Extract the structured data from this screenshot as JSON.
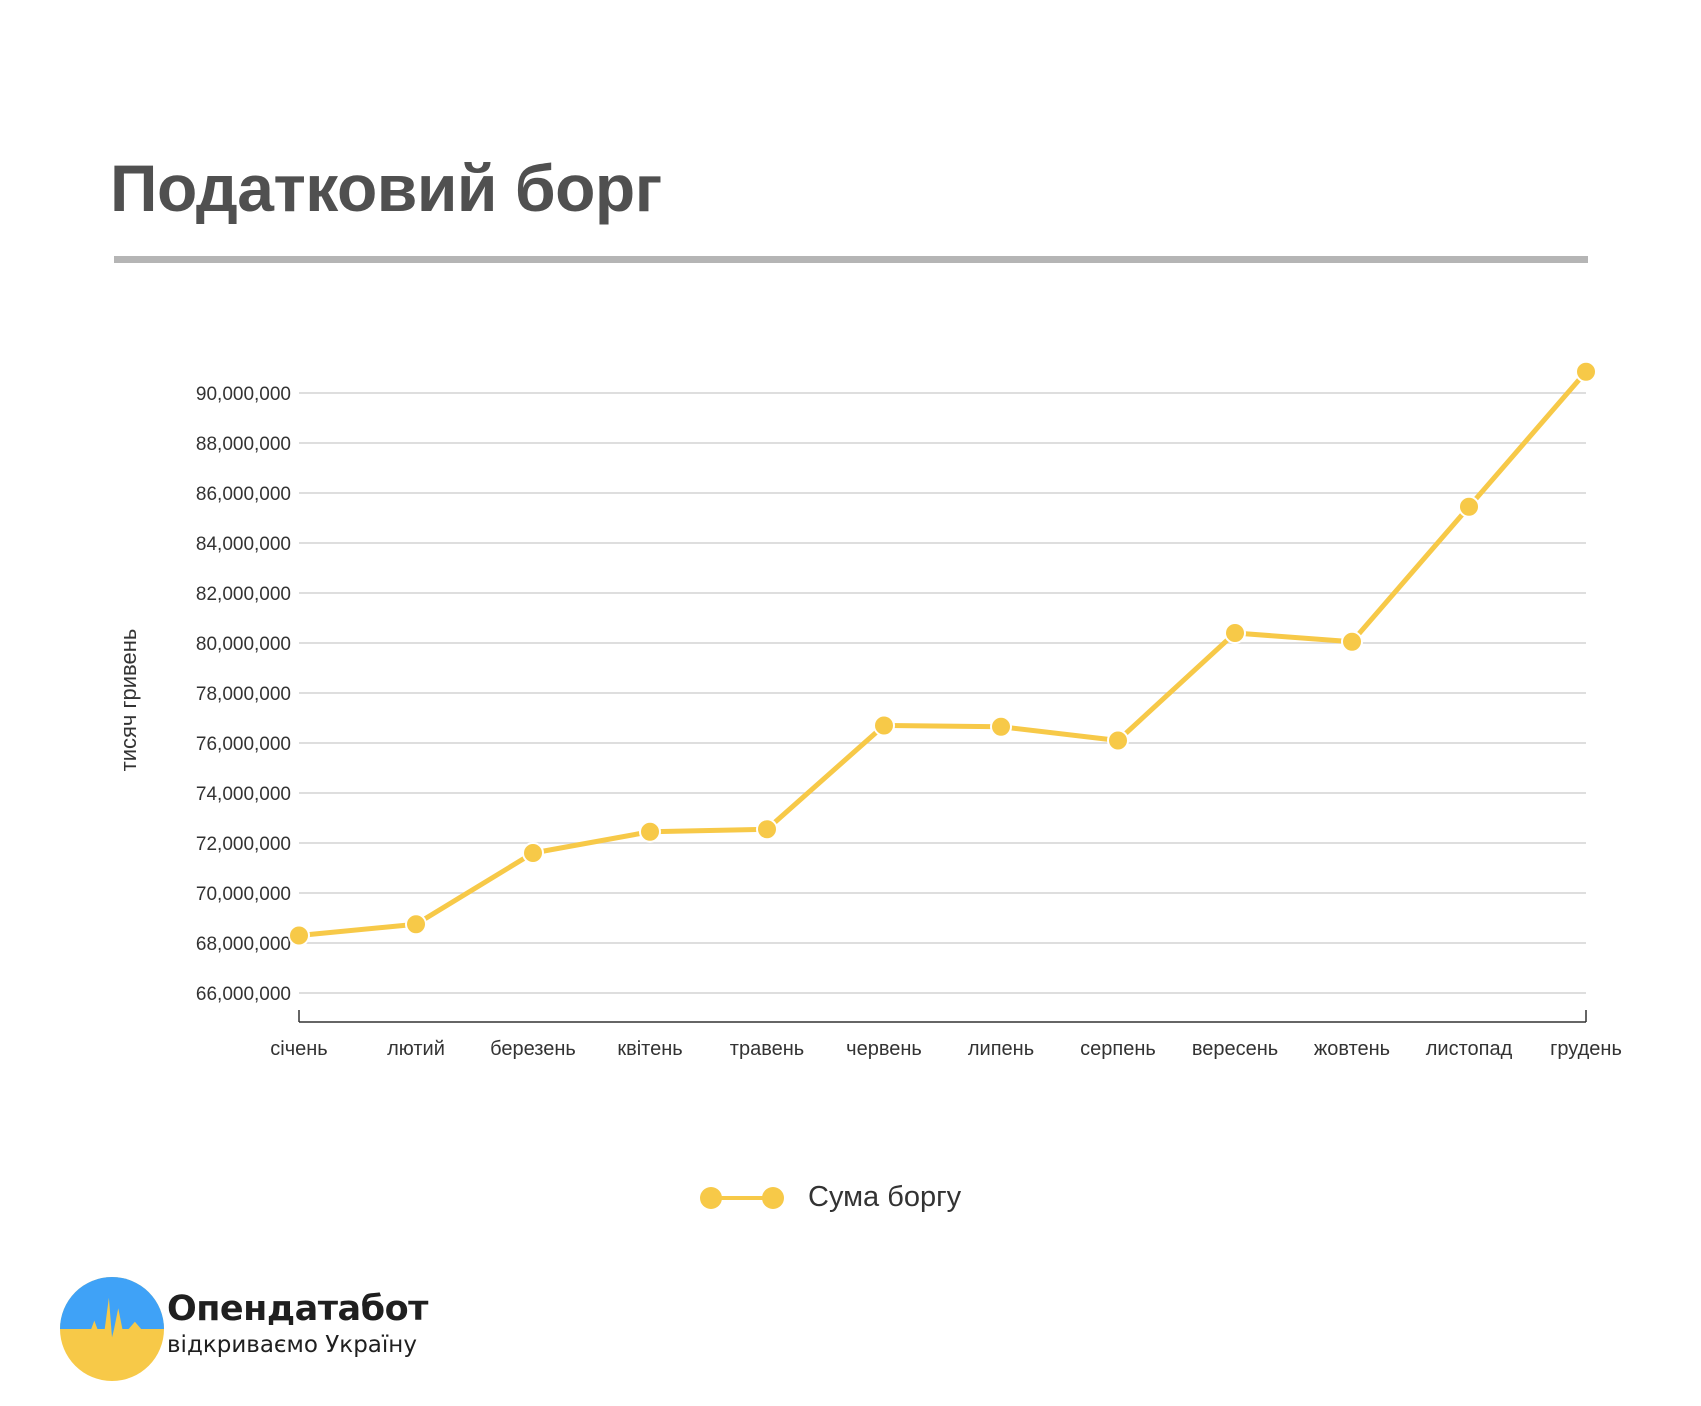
{
  "header": {
    "title": "Податковий борг"
  },
  "chart_data": {
    "type": "line",
    "categories": [
      "січень",
      "лютий",
      "березень",
      "квітень",
      "травень",
      "червень",
      "липень",
      "серпень",
      "вересень",
      "жовтень",
      "листопад",
      "грудень"
    ],
    "series": [
      {
        "name": "Сума боргу",
        "color": "#f7c948",
        "values": [
          68300000,
          68750000,
          71600000,
          72450000,
          72550000,
          76700000,
          76650000,
          76100000,
          80400000,
          80050000,
          85450000,
          90850000
        ]
      }
    ],
    "ylabel": "тисяч гривень",
    "xlabel": "",
    "ylim": [
      65000000,
      91000000
    ],
    "yticks": [
      66000000,
      68000000,
      70000000,
      72000000,
      74000000,
      76000000,
      78000000,
      80000000,
      82000000,
      84000000,
      86000000,
      88000000,
      90000000
    ],
    "ytick_labels": [
      "66,000,000",
      "68,000,000",
      "70,000,000",
      "72,000,000",
      "74,000,000",
      "76,000,000",
      "78,000,000",
      "80,000,000",
      "82,000,000",
      "84,000,000",
      "86,000,000",
      "88,000,000",
      "90,000,000"
    ],
    "grid": true,
    "legend_position": "bottom-center"
  },
  "branding": {
    "name": "Опендатабот",
    "slogan": "відкриваємо Україну",
    "colors": {
      "sky": "#3fa2f7",
      "field": "#f7c948"
    }
  }
}
